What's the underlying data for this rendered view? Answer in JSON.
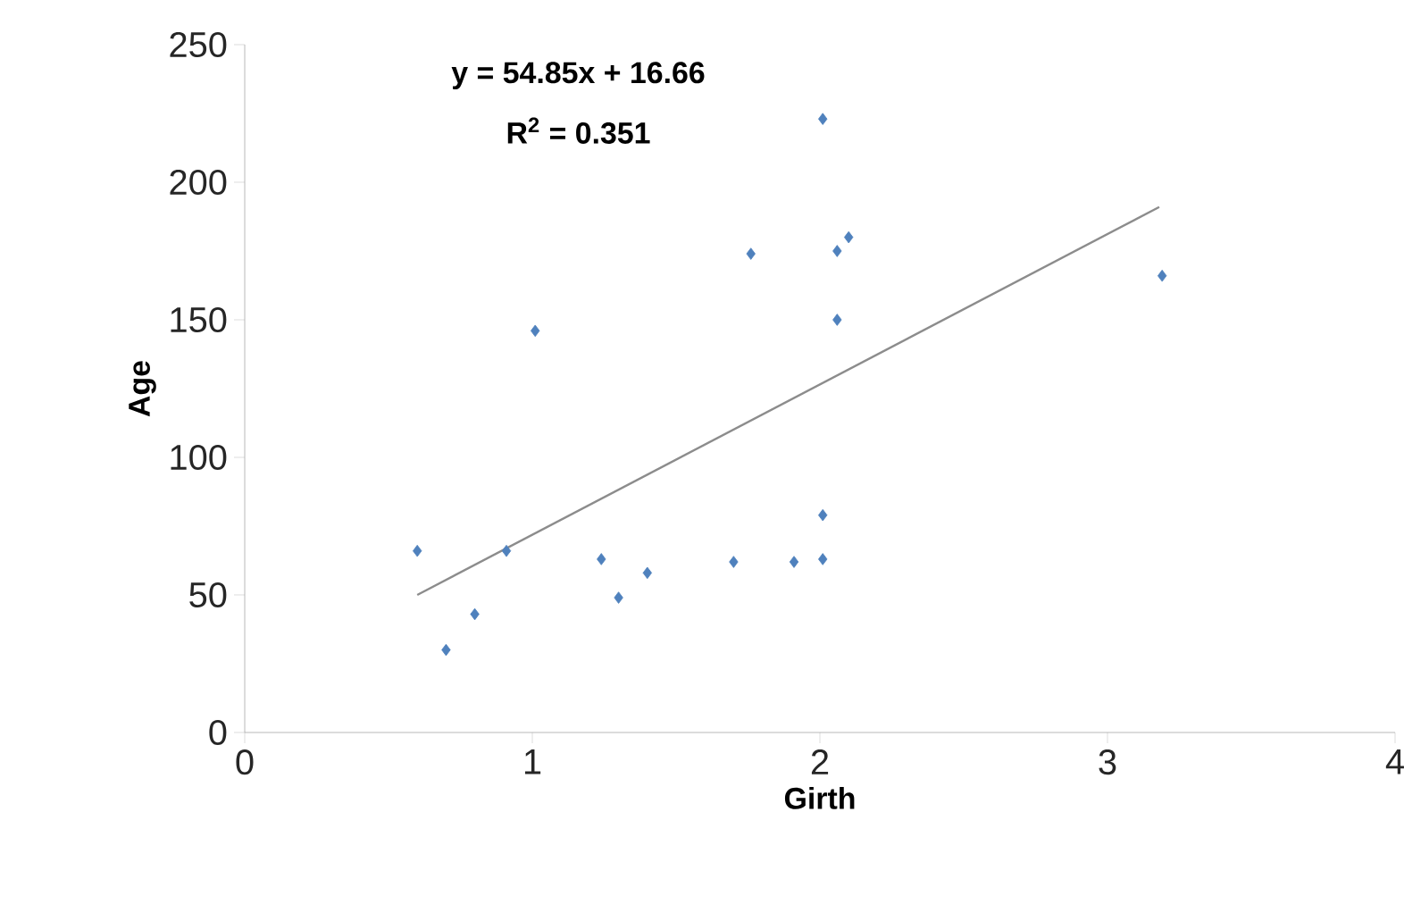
{
  "chart_data": {
    "type": "scatter",
    "xlabel": "Girth",
    "ylabel": "Age",
    "xlim": [
      0,
      4
    ],
    "xticks": [
      0,
      1,
      2,
      3,
      4
    ],
    "ylim": [
      0,
      250
    ],
    "yticks": [
      0,
      50,
      100,
      150,
      200,
      250
    ],
    "grid": false,
    "marker": "diamond",
    "series": [
      {
        "color": "#4f81bd",
        "x": [
          0.6,
          0.7,
          0.8,
          0.91,
          1.01,
          1.24,
          1.3,
          1.4,
          1.7,
          1.91,
          2.01,
          2.01,
          2.01,
          1.76,
          2.06,
          2.1,
          2.06,
          3.19
        ],
        "values": [
          66,
          30,
          43,
          66,
          146,
          63,
          49,
          58,
          62,
          62,
          63,
          79,
          223,
          174,
          175,
          180,
          150,
          166
        ]
      },
      {
        "type": "line",
        "color": "#8c8c8c",
        "marker": "none",
        "x": [
          0.6,
          3.18
        ],
        "values": [
          50,
          191
        ]
      }
    ],
    "annotations": [
      "y = 54.85x + 16.66",
      "R$^{2}$ = 0.351"
    ]
  }
}
